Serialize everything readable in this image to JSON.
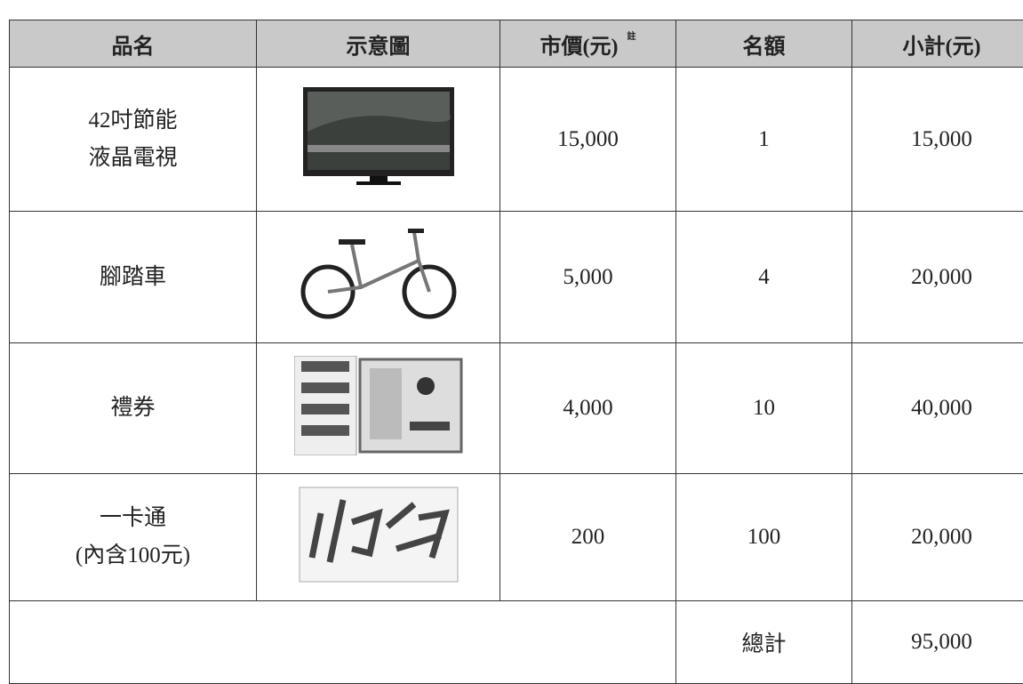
{
  "table": {
    "header": [
      "品名",
      "示意圖",
      "市價(元)",
      "名額",
      "小計(元)"
    ],
    "header_note": "註",
    "rows": [
      {
        "name": [
          "42吋節能",
          "液晶電視"
        ],
        "price": "15,000",
        "count": "1",
        "subtotal": "15,000"
      },
      {
        "name": [
          "腳踏車"
        ],
        "price": "5,000",
        "count": "4",
        "subtotal": "20,000"
      },
      {
        "name": [
          "禮券"
        ],
        "price": "4,000",
        "count": "10",
        "subtotal": "40,000"
      },
      {
        "name": [
          "一卡通",
          "(內含100元)"
        ],
        "price": "200",
        "count": "100",
        "subtotal": "20,000"
      }
    ],
    "total_label": "總計",
    "total_value": "95,000"
  }
}
